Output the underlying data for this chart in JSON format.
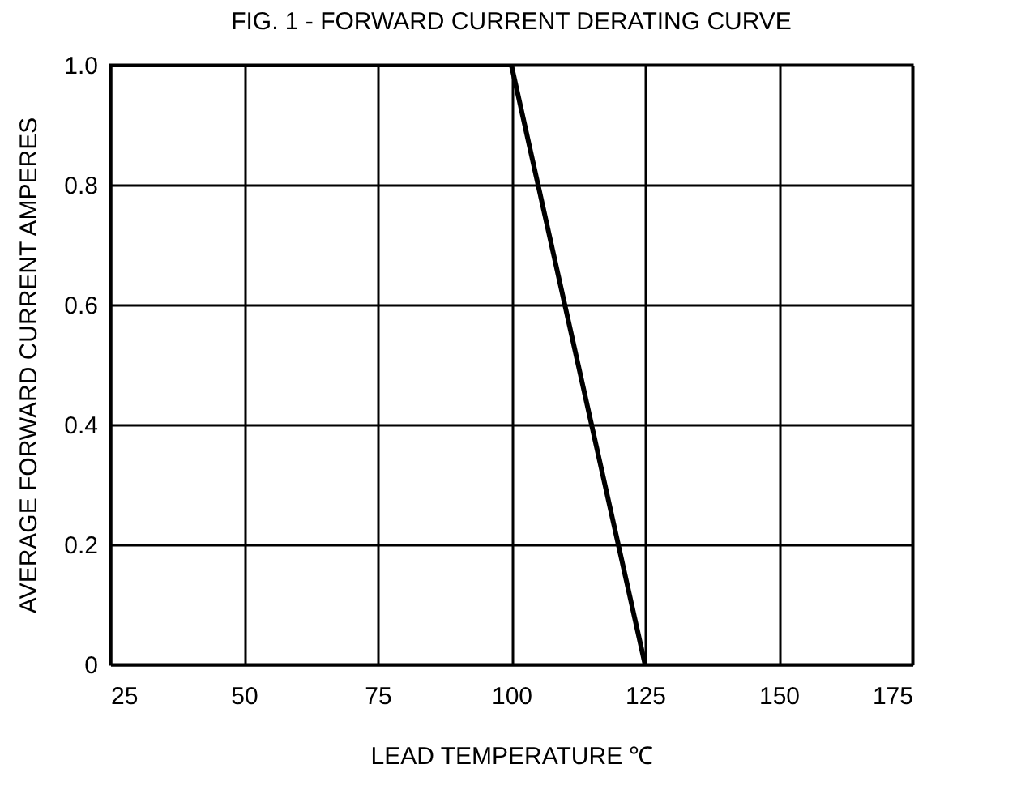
{
  "chart_data": {
    "type": "line",
    "title": "FIG. 1 - FORWARD CURRENT DERATING CURVE",
    "xlabel": "LEAD TEMPERATURE ℃",
    "ylabel": "AVERAGE FORWARD CURRENT AMPERES",
    "x": [
      25,
      100,
      125
    ],
    "series": [
      {
        "color": "#000000",
        "values": [
          1,
          1,
          0
        ]
      }
    ],
    "xlim": [
      25,
      175
    ],
    "xticks": [
      25,
      50,
      75,
      100,
      125,
      150,
      175
    ],
    "ylim": [
      0,
      1
    ],
    "yticks": [
      0,
      0.2,
      0.4,
      0.6,
      0.8,
      {
        "value": 1,
        "label": "1.0"
      }
    ],
    "grid": true,
    "marker": "none",
    "line_style": "solid"
  }
}
